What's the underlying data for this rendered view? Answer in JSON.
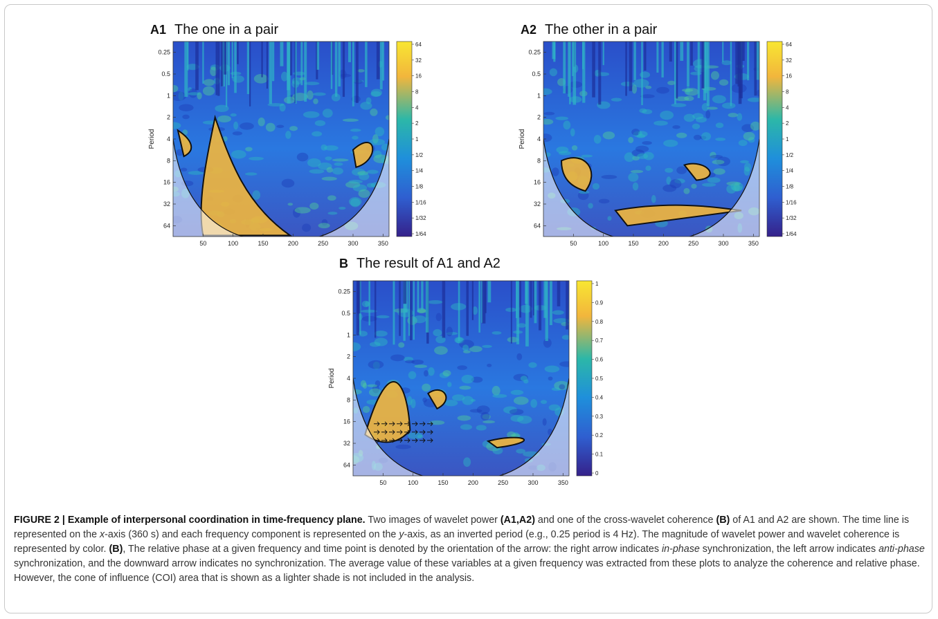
{
  "panels": {
    "a1": {
      "tag": "A1",
      "title": "The one in a pair"
    },
    "a2": {
      "tag": "A2",
      "title": "The other in a pair"
    },
    "b": {
      "tag": "B",
      "title": "The result of A1 and A2"
    }
  },
  "chart_data": [
    {
      "type": "heatmap",
      "panel": "A1",
      "title": "The one in a pair",
      "xlabel": "",
      "ylabel": "Period",
      "xlim": [
        0,
        360
      ],
      "x_ticks": [
        50,
        100,
        150,
        200,
        250,
        300,
        350
      ],
      "y_ticks": [
        "0.25",
        "0.5",
        "1",
        "2",
        "4",
        "8",
        "16",
        "32",
        "64"
      ],
      "y_scale": "log2",
      "y_inverted": true,
      "colorbar_ticks": [
        "64",
        "32",
        "16",
        "8",
        "4",
        "2",
        "1",
        "1/2",
        "1/4",
        "1/8",
        "1/16",
        "1/32",
        "1/64"
      ]
    },
    {
      "type": "heatmap",
      "panel": "A2",
      "title": "The other in a pair",
      "xlabel": "",
      "ylabel": "Period",
      "xlim": [
        0,
        360
      ],
      "x_ticks": [
        50,
        100,
        150,
        200,
        250,
        300,
        350
      ],
      "y_ticks": [
        "0.25",
        "0.5",
        "1",
        "2",
        "4",
        "8",
        "16",
        "32",
        "64"
      ],
      "y_scale": "log2",
      "y_inverted": true,
      "colorbar_ticks": [
        "64",
        "32",
        "16",
        "8",
        "4",
        "2",
        "1",
        "1/2",
        "1/4",
        "1/8",
        "1/16",
        "1/32",
        "1/64"
      ]
    },
    {
      "type": "heatmap",
      "panel": "B",
      "title": "The result of A1 and A2",
      "xlabel": "",
      "ylabel": "Period",
      "xlim": [
        0,
        360
      ],
      "x_ticks": [
        50,
        100,
        150,
        200,
        250,
        300,
        350
      ],
      "y_ticks": [
        "0.25",
        "0.5",
        "1",
        "2",
        "4",
        "8",
        "16",
        "32",
        "64"
      ],
      "y_scale": "log2",
      "y_inverted": true,
      "colorbar_ticks": [
        "1",
        "0.9",
        "0.8",
        "0.7",
        "0.6",
        "0.5",
        "0.4",
        "0.3",
        "0.2",
        "0.1",
        "0"
      ]
    }
  ],
  "caption": {
    "label": "FIGURE 2 | Example of interpersonal coordination in time-frequency plane.",
    "s1": " Two images of wavelet power ",
    "b1": "(A1,A2)",
    "s2": " and one of the cross-wavelet coherence ",
    "b2": "(B)",
    "s3": " of A1 and A2 are shown. The time line is represented on the ",
    "i1": "x",
    "s4": "-axis (360 s) and each frequency component is represented on the ",
    "i2": "y",
    "s5": "-axis, as an inverted period (e.g., 0.25 period is 4 Hz). The magnitude of wavelet power and wavelet coherence is represented by color. ",
    "b3": "(B)",
    "s6": ", The relative phase at a given frequency and time point is denoted by the orientation of the arrow: the right arrow indicates ",
    "i3": "in-phase",
    "s7": " synchronization, the left arrow indicates ",
    "i4": "anti-phase",
    "s8": " synchronization, and the downward arrow indicates no synchronization. The average value of these variables at a given frequency was extracted from these plots to analyze the coherence and relative phase. However, the cone of influence (COI) area that is shown as a lighter shade is not included in the analysis."
  }
}
